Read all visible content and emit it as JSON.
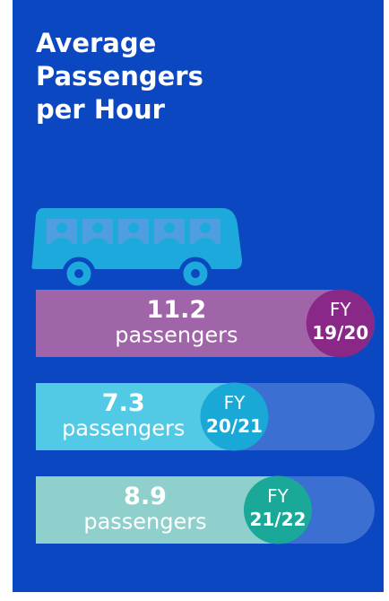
{
  "chart_data": {
    "type": "bar",
    "title": "Average Passengers per Hour",
    "category_prefix": "FY",
    "categories": [
      "19/20",
      "20/21",
      "21/22"
    ],
    "values": [
      11.2,
      7.3,
      8.9
    ],
    "unit": "passengers",
    "xlim": [
      0,
      12
    ],
    "colors": [
      "#a064a8",
      "#52cae6",
      "#8fd0cc"
    ],
    "badge_colors": [
      "#8a2888",
      "#1aa8d6",
      "#1aa898"
    ]
  }
}
